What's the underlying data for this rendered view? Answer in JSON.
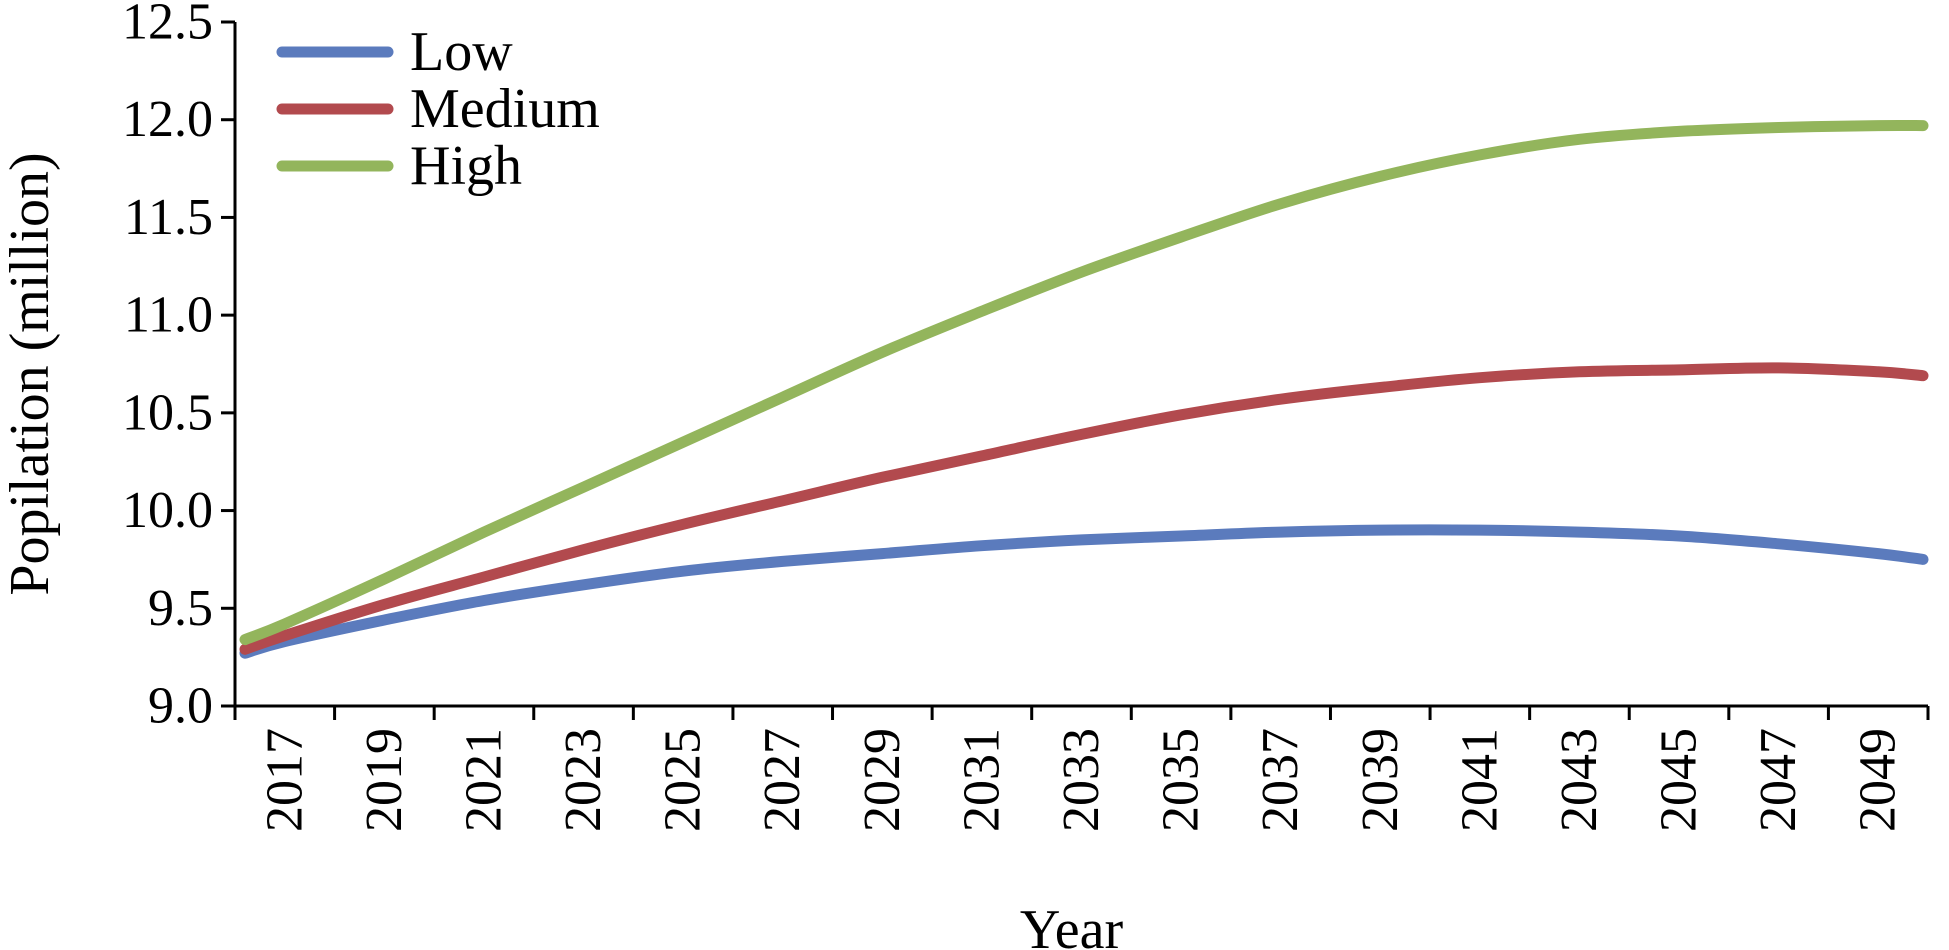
{
  "chart_data": {
    "type": "line",
    "title": "",
    "xlabel": "Year",
    "ylabel": "Popilation (million)",
    "xlim": [
      2016,
      2050
    ],
    "ylim": [
      9.0,
      12.5
    ],
    "x_ticks": [
      2017,
      2019,
      2021,
      2023,
      2025,
      2027,
      2029,
      2031,
      2033,
      2035,
      2037,
      2039,
      2041,
      2043,
      2045,
      2047,
      2049
    ],
    "x_tick_labels": [
      "2017",
      "2019",
      "2021",
      "2023",
      "2025",
      "2027",
      "2029",
      "2031",
      "2033",
      "2035",
      "2037",
      "2039",
      "2041",
      "2043",
      "2045",
      "2047",
      "2049"
    ],
    "y_ticks": [
      9.0,
      9.5,
      10.0,
      10.5,
      11.0,
      11.5,
      12.0,
      12.5
    ],
    "y_tick_labels": [
      "9.0",
      "9.5",
      "10.0",
      "10.5",
      "11.0",
      "11.5",
      "12.0",
      "12.5"
    ],
    "grid": false,
    "legend_position": "top-left",
    "x": [
      2016.2,
      2017,
      2019,
      2021,
      2023,
      2025,
      2027,
      2029,
      2031,
      2033,
      2035,
      2037,
      2039,
      2041,
      2043,
      2045,
      2047,
      2049,
      2049.9
    ],
    "series": [
      {
        "name": "Low",
        "color": "#5b7bbd",
        "values": [
          9.27,
          9.33,
          9.44,
          9.54,
          9.62,
          9.69,
          9.74,
          9.78,
          9.82,
          9.85,
          9.87,
          9.89,
          9.9,
          9.9,
          9.89,
          9.87,
          9.83,
          9.78,
          9.75
        ]
      },
      {
        "name": "Medium",
        "color": "#b24a4e",
        "values": [
          9.29,
          9.36,
          9.52,
          9.66,
          9.8,
          9.93,
          10.05,
          10.17,
          10.28,
          10.39,
          10.49,
          10.57,
          10.63,
          10.68,
          10.71,
          10.72,
          10.73,
          10.71,
          10.69
        ]
      },
      {
        "name": "High",
        "color": "#93b55c",
        "values": [
          9.34,
          9.42,
          9.65,
          9.89,
          10.12,
          10.35,
          10.58,
          10.81,
          11.02,
          11.22,
          11.4,
          11.57,
          11.71,
          11.82,
          11.9,
          11.94,
          11.96,
          11.97,
          11.97
        ]
      }
    ]
  }
}
